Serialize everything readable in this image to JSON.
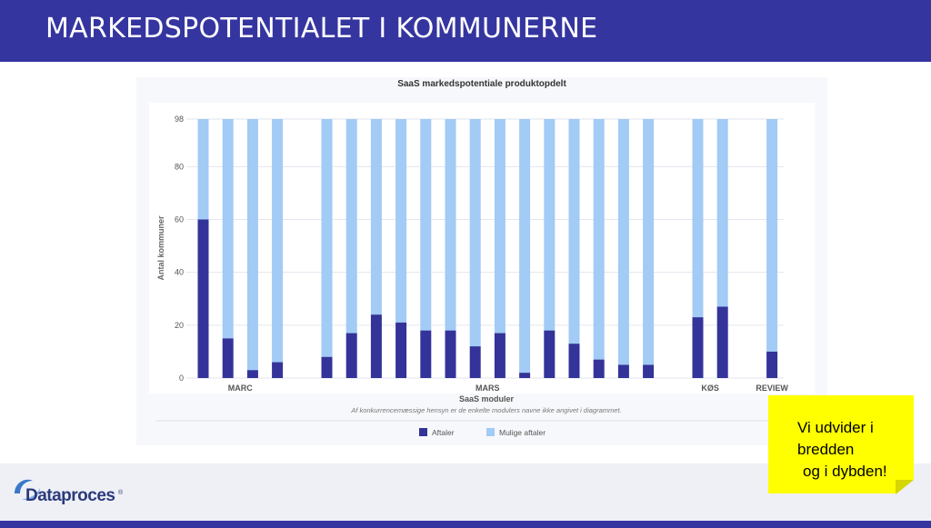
{
  "slide": {
    "title": "MARKEDSPOTENTIALET I KOMMUNERNE",
    "logo_text": "Dataproces",
    "logo_mark": "®",
    "note_lines": [
      "Vi udvider i",
      "bredden",
      "og i dybden!"
    ]
  },
  "colors": {
    "header": "#3535a0",
    "aftaler": "#333399",
    "mulige": "#a2cbf5",
    "note": "#ffff00"
  },
  "chart_data": {
    "type": "bar",
    "stacked": true,
    "title": "SaaS markedspotentiale produktopdelt",
    "xlabel": "SaaS moduler",
    "ylabel": "Antal kommuner",
    "subtitle": "Af konkurrencemæssige hensyn er de enkelte modulers navne ikke angivet i diagrammet.",
    "ylim": [
      0,
      98
    ],
    "yticks": [
      0,
      20,
      40,
      60,
      80,
      98
    ],
    "groups": [
      {
        "label": "MARC",
        "count": 4
      },
      {
        "label": "MARS",
        "count": 14
      },
      {
        "label": "KØS",
        "count": 2
      },
      {
        "label": "REVIEW",
        "count": 1
      }
    ],
    "total": 98,
    "series": [
      {
        "name": "Aftaler",
        "values": [
          60,
          15,
          3,
          6,
          8,
          17,
          24,
          21,
          18,
          18,
          12,
          17,
          2,
          18,
          13,
          7,
          5,
          5,
          23,
          27,
          10
        ]
      },
      {
        "name": "Mulige aftaler",
        "values": [
          38,
          83,
          95,
          92,
          90,
          81,
          74,
          77,
          80,
          80,
          86,
          81,
          96,
          80,
          85,
          91,
          93,
          93,
          75,
          71,
          88
        ]
      }
    ],
    "grid": true,
    "legend_position": "bottom-center"
  }
}
